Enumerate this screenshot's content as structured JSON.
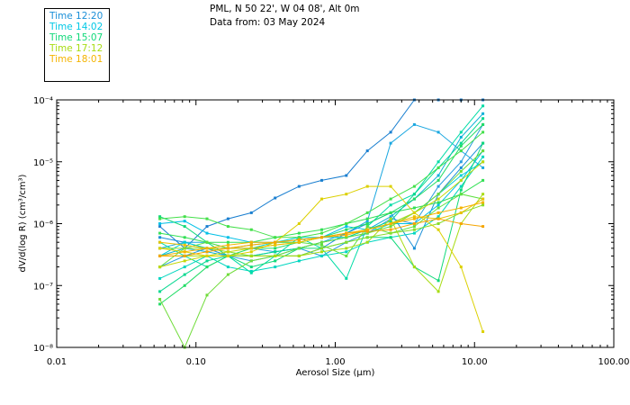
{
  "legend": [
    {
      "label": "Time 12:20",
      "color": "#1a8fd8"
    },
    {
      "label": "Time 14:02",
      "color": "#00c8e6"
    },
    {
      "label": "Time 15:07",
      "color": "#11d97a"
    },
    {
      "label": "Time 17:12",
      "color": "#a8dc14"
    },
    {
      "label": "Time 18:01",
      "color": "#f4b400"
    }
  ],
  "header": {
    "line1": "PML, N 50 22', W 04 08', Alt 0m",
    "line2": "Data from: 03 May 2024"
  },
  "chart_data": {
    "type": "line",
    "xscale": "log",
    "yscale": "log",
    "xlim": [
      0.01,
      100
    ],
    "ylim": [
      1e-08,
      0.0001
    ],
    "xlabel": "Aerosol Size (μm)",
    "ylabel": "dV/d(log R) (cm³/cm³)",
    "xticks": [
      0.01,
      0.1,
      1,
      10,
      100
    ],
    "xtick_labels": [
      "0.01",
      "0.10",
      "1.00",
      "10.00",
      "100.00"
    ],
    "yticks": [
      1e-08,
      1e-07,
      1e-06,
      1e-05,
      0.0001
    ],
    "ytick_labels": [
      "10⁻⁸",
      "10⁻⁷",
      "10⁻⁶",
      "10⁻⁵",
      "10⁻⁴"
    ],
    "x": [
      0.055,
      0.083,
      0.12,
      0.17,
      0.25,
      0.37,
      0.55,
      0.8,
      1.2,
      1.7,
      2.5,
      3.7,
      5.5,
      8.0,
      11.5
    ],
    "series": [
      {
        "name": "s01",
        "color": "#1a7fd0",
        "values": [
          9e-07,
          4e-07,
          9e-07,
          1.2e-06,
          1.5e-06,
          2.6e-06,
          4e-06,
          5e-06,
          6e-06,
          1.5e-05,
          3e-05,
          0.0001,
          0.0001,
          0.0001,
          0.0001
        ]
      },
      {
        "name": "s02",
        "color": "#1a8fd8",
        "values": [
          6e-07,
          5e-07,
          4e-07,
          3e-07,
          3e-07,
          3e-07,
          3e-07,
          4e-07,
          7e-07,
          1e-06,
          1.5e-06,
          4e-07,
          3e-06,
          8e-06,
          2e-05
        ]
      },
      {
        "name": "s03",
        "color": "#2b9ee0",
        "values": [
          2e-07,
          3e-07,
          4e-07,
          3e-07,
          2.5e-07,
          3e-07,
          4e-07,
          3e-07,
          5e-07,
          7e-07,
          1.2e-06,
          1e-06,
          4e-06,
          1e-05,
          4e-05
        ]
      },
      {
        "name": "s04",
        "color": "#1aa7e0",
        "values": [
          4e-07,
          5e-07,
          5e-07,
          4e-07,
          4e-07,
          3.5e-07,
          4e-07,
          5e-07,
          7e-07,
          1.1e-06,
          2e-05,
          4e-05,
          3e-05,
          1.5e-05,
          8e-06
        ]
      },
      {
        "name": "s05",
        "color": "#0cb0d8",
        "values": [
          3e-07,
          4e-07,
          3.5e-07,
          3e-07,
          3e-07,
          3.5e-07,
          4e-07,
          5e-07,
          6e-07,
          8e-07,
          1.3e-06,
          2.5e-06,
          6e-06,
          2.5e-05,
          6e-05
        ]
      },
      {
        "name": "s06",
        "color": "#00c0e6",
        "values": [
          1e-06,
          1.1e-06,
          7e-07,
          6e-07,
          5e-07,
          5e-07,
          5e-07,
          6e-07,
          9e-07,
          8e-07,
          1e-06,
          1e-06,
          2e-06,
          5e-06,
          1.5e-05
        ]
      },
      {
        "name": "s07",
        "color": "#00d0d8",
        "values": [
          3e-07,
          5e-07,
          4e-07,
          4e-07,
          4e-07,
          5e-07,
          6e-07,
          6e-07,
          6e-07,
          7e-07,
          1e-06,
          1.5e-06,
          3e-06,
          6e-06,
          1e-05
        ]
      },
      {
        "name": "s08",
        "color": "#00d6c0",
        "values": [
          1.3e-07,
          2e-07,
          3e-07,
          2e-07,
          1.7e-07,
          2e-07,
          2.5e-07,
          3e-07,
          3.5e-07,
          5e-07,
          6e-07,
          7e-07,
          1.3e-06,
          4e-06,
          1.2e-05
        ]
      },
      {
        "name": "s09",
        "color": "#00dca6",
        "values": [
          5e-07,
          3e-07,
          2e-07,
          3e-07,
          1.6e-07,
          3e-07,
          6e-07,
          4e-07,
          1.3e-07,
          9e-07,
          2e-06,
          3e-06,
          1e-05,
          3e-05,
          8e-05
        ]
      },
      {
        "name": "s10",
        "color": "#08d890",
        "values": [
          8e-08,
          1.5e-07,
          2.5e-07,
          3e-07,
          3e-07,
          3.5e-07,
          4e-07,
          5e-07,
          6e-07,
          8e-07,
          1.1e-06,
          3e-06,
          8e-06,
          2e-05,
          5e-05
        ]
      },
      {
        "name": "s11",
        "color": "#11d97a",
        "values": [
          1.3e-06,
          9e-07,
          5e-07,
          3e-07,
          2e-07,
          2.5e-07,
          4e-07,
          4e-07,
          5e-07,
          6e-07,
          6e-07,
          2e-07,
          1.2e-07,
          3.5e-06,
          2e-05
        ]
      },
      {
        "name": "s12",
        "color": "#22dc66",
        "values": [
          5e-08,
          1e-07,
          2e-07,
          3e-07,
          4e-07,
          4e-07,
          5e-07,
          6e-07,
          8e-07,
          1e-06,
          1.5e-06,
          2.5e-06,
          5e-06,
          1.8e-05,
          4e-05
        ]
      },
      {
        "name": "s13",
        "color": "#33e055",
        "values": [
          7e-07,
          6e-07,
          5e-07,
          5e-07,
          5e-07,
          6e-07,
          7e-07,
          8e-07,
          1e-06,
          1.2e-06,
          1.5e-06,
          1.8e-06,
          2.2e-06,
          3e-06,
          5e-06
        ]
      },
      {
        "name": "s14",
        "color": "#44e04a",
        "values": [
          1.2e-06,
          1.3e-06,
          1.2e-06,
          9e-07,
          8e-07,
          6e-07,
          6e-07,
          7e-07,
          1e-06,
          1.5e-06,
          2.5e-06,
          4e-06,
          8e-06,
          1.5e-05,
          3e-05
        ]
      },
      {
        "name": "s15",
        "color": "#5ee040",
        "values": [
          2e-07,
          4e-07,
          5e-07,
          4e-07,
          4.5e-07,
          5e-07,
          5e-07,
          4.5e-07,
          3e-07,
          9e-07,
          7e-07,
          9e-07,
          1.8e-06,
          3e-06,
          2.5e-06
        ]
      },
      {
        "name": "s16",
        "color": "#70dc3a",
        "values": [
          6e-08,
          1e-08,
          7e-08,
          1.5e-07,
          2.5e-07,
          3e-07,
          4e-07,
          5e-07,
          6e-07,
          7e-07,
          9e-07,
          1.5e-06,
          3e-06,
          7e-06,
          1.5e-05
        ]
      },
      {
        "name": "s17",
        "color": "#88dc2a",
        "values": [
          4e-07,
          4e-07,
          4e-07,
          3.5e-07,
          3e-07,
          3e-07,
          3e-07,
          4e-07,
          5e-07,
          6e-07,
          7e-07,
          8e-07,
          1e-06,
          1.5e-06,
          2e-06
        ]
      },
      {
        "name": "s18",
        "color": "#a8dc14",
        "values": [
          3e-07,
          3e-07,
          3e-07,
          3e-07,
          3e-07,
          3e-07,
          3e-07,
          3.5e-07,
          4e-07,
          5e-07,
          1.2e-06,
          2e-07,
          8e-08,
          1e-06,
          3e-06
        ]
      },
      {
        "name": "s19",
        "color": "#c4d80a",
        "values": [
          2e-07,
          2.5e-07,
          3e-07,
          3.5e-07,
          4e-07,
          4.5e-07,
          5e-07,
          6e-07,
          7e-07,
          8e-07,
          1e-06,
          1.5e-06,
          2.5e-06,
          5e-06,
          1e-05
        ]
      },
      {
        "name": "s20",
        "color": "#dcd000",
        "values": [
          4e-07,
          3.5e-07,
          3e-07,
          3e-07,
          3.5e-07,
          5e-07,
          1e-06,
          2.5e-06,
          3e-06,
          4e-06,
          4e-06,
          1.5e-06,
          8e-07,
          2e-07,
          1.8e-08
        ]
      },
      {
        "name": "s21",
        "color": "#ecc000",
        "values": [
          5e-07,
          4.5e-07,
          4e-07,
          4e-07,
          4e-07,
          4.5e-07,
          5e-07,
          6e-07,
          7e-07,
          8e-07,
          1e-06,
          1.3e-06,
          1.2e-06,
          1.5e-06,
          2.5e-06
        ]
      },
      {
        "name": "s22",
        "color": "#f4b400",
        "values": [
          3e-07,
          3.5e-07,
          4e-07,
          4.5e-07,
          5e-07,
          5e-07,
          5.5e-07,
          6e-07,
          6.5e-07,
          8e-07,
          1e-06,
          1.2e-06,
          1.5e-06,
          1.8e-06,
          2.2e-06
        ]
      },
      {
        "name": "s23",
        "color": "#f5a500",
        "values": [
          3e-07,
          3e-07,
          3.5e-07,
          4e-07,
          4.5e-07,
          5e-07,
          5.5e-07,
          6e-07,
          7e-07,
          7.5e-07,
          8e-07,
          1e-06,
          1.2e-06,
          1e-06,
          9e-07
        ]
      }
    ]
  }
}
